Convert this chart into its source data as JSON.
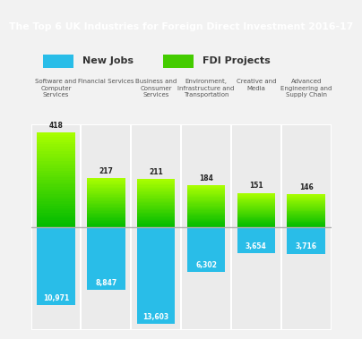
{
  "title": "The Top 6 UK Industries for Foreign Direct Investment 2016-17",
  "title_bg": "#2bbcdf",
  "title_color": "white",
  "bg_color": "#f2f2f2",
  "panel_bg": "#ebebeb",
  "divider_color": "#c8c8c8",
  "categories": [
    "Software and\nComputer\nServices",
    "Financial Services",
    "Business and\nConsumer\nServices",
    "Environment,\nInfrastructure and\nTransportation",
    "Creative and\nMedia",
    "Advanced\nEngineering and\nSupply Chain"
  ],
  "new_jobs": [
    10971,
    8847,
    13603,
    6302,
    3654,
    3716
  ],
  "fdi_projects": [
    418,
    217,
    211,
    184,
    151,
    146
  ],
  "new_jobs_color": "#29bde8",
  "fdi_top_color": "#aaff00",
  "fdi_bottom_color": "#22aa22",
  "legend_new_jobs": "New Jobs",
  "legend_fdi": "FDI Projects",
  "max_jobs": 13603,
  "max_fdi": 418,
  "jobs_label_color": "white",
  "fdi_label_color": "#222222"
}
